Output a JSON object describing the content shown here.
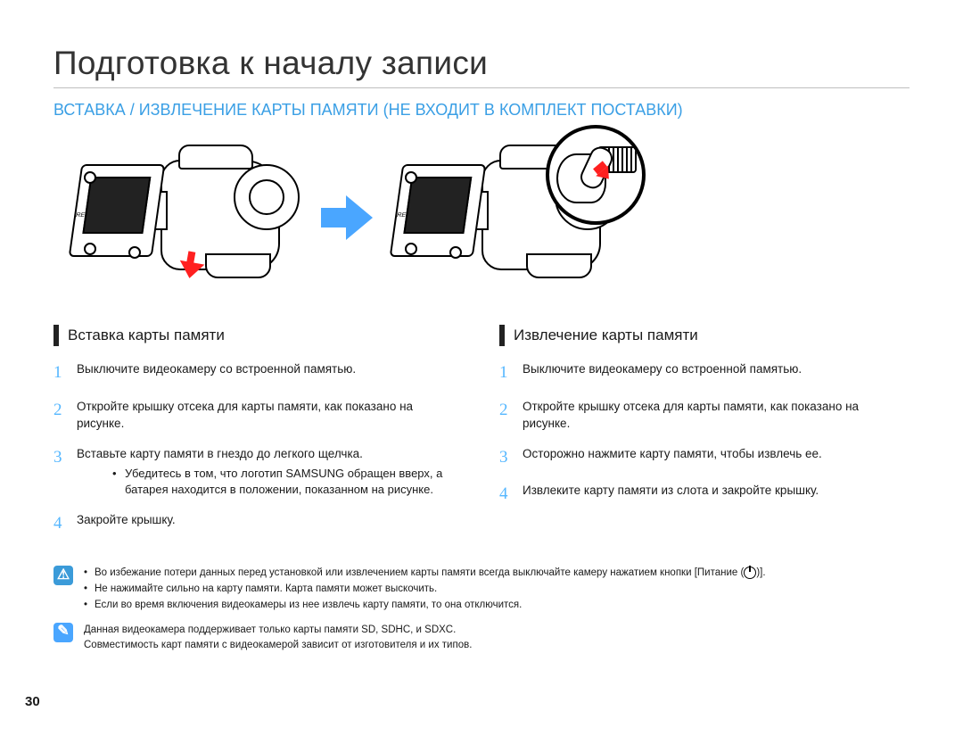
{
  "page": {
    "number": "30",
    "title": "Подготовка к началу записи",
    "section_title": "ВСТАВКА / ИЗВЛЕЧЕНИЕ КАРТЫ ПАМЯТИ (НЕ ВХОДИТ В КОМПЛЕКТ ПОСТАВКИ)",
    "section_title_color": "#3a9fe5"
  },
  "insert": {
    "heading": "Вставка карты памяти",
    "steps": [
      {
        "n": "1",
        "text": "Выключите видеокамеру со встроенной памятью."
      },
      {
        "n": "2",
        "text": "Откройте крышку отсека для карты памяти, как показано на рисунке."
      },
      {
        "n": "3",
        "text": "Вставьте карту памяти в гнездо до легкого щелчка.",
        "sub": [
          "Убедитесь в том, что логотип SAMSUNG обращен вверх, а батарея находится в положении, показанном на рисунке."
        ]
      },
      {
        "n": "4",
        "text": "Закройте крышку."
      }
    ]
  },
  "eject": {
    "heading": "Извлечение карты памяти",
    "steps": [
      {
        "n": "1",
        "text": "Выключите видеокамеру со встроенной памятью."
      },
      {
        "n": "2",
        "text": "Откройте крышку отсека для карты памяти, как показано на рисунке."
      },
      {
        "n": "3",
        "text": "Осторожно нажмите карту памяти, чтобы извлечь ее."
      },
      {
        "n": "4",
        "text": "Извлеките карту памяти из слота и закройте крышку."
      }
    ]
  },
  "warning": {
    "icon_bg": "#3b9bd9",
    "icon_glyph": "⚠",
    "lines": [
      "Во избежание потери данных перед установкой или извлечением карты памяти всегда выключайте камеру нажатием кнопки [Питание (⏻)].",
      "Не нажимайте сильно на карту памяти. Карта памяти может выскочить.",
      "Если во время включения видеокамеры из нее извлечь карту памяти, то она отключится."
    ]
  },
  "info": {
    "icon_bg": "#4aa6ff",
    "icon_glyph": "✎",
    "lines": [
      "Данная видеокамера поддерживает только карты памяти SD, SDHC, и SDXC.",
      "Совместимость карт памяти с видеокамерой зависит от изготовителя и их типов."
    ]
  },
  "style": {
    "accent_blue": "#55b7ff",
    "bar_color": "#222222",
    "arrow_red": "#ff2020",
    "arrow_blue": "#4aa6ff"
  }
}
